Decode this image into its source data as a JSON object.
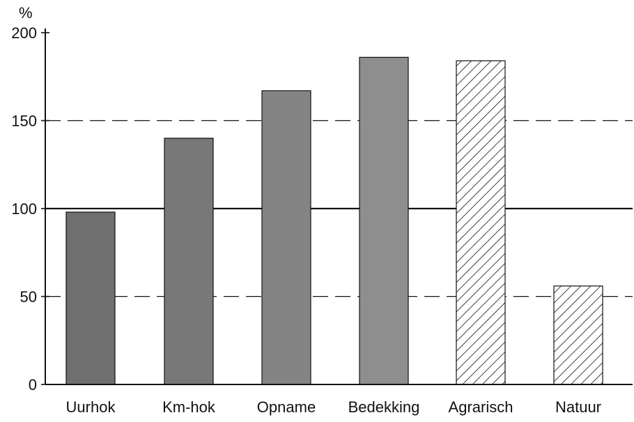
{
  "chart_data": {
    "type": "bar",
    "ylabel": "%",
    "ylim": [
      0,
      200
    ],
    "yticks": [
      "0",
      "50",
      "100",
      "150",
      "200"
    ],
    "categories": [
      "Uurhok",
      "Km-hok",
      "Opname",
      "Bedekking",
      "Agrarisch",
      "Natuur"
    ],
    "values": [
      98,
      140,
      167,
      186,
      184,
      56
    ],
    "bar_styles": [
      "solid",
      "solid",
      "solid",
      "solid",
      "hatched",
      "hatched"
    ],
    "bar_colors": [
      "#6f6f6f",
      "#787878",
      "#848484",
      "#8e8e8e",
      "#ffffff",
      "#ffffff"
    ],
    "reference_lines": [
      {
        "y": 50,
        "style": "dashed"
      },
      {
        "y": 100,
        "style": "solid"
      },
      {
        "y": 150,
        "style": "dashed"
      }
    ],
    "grid": false,
    "legend": "none"
  }
}
